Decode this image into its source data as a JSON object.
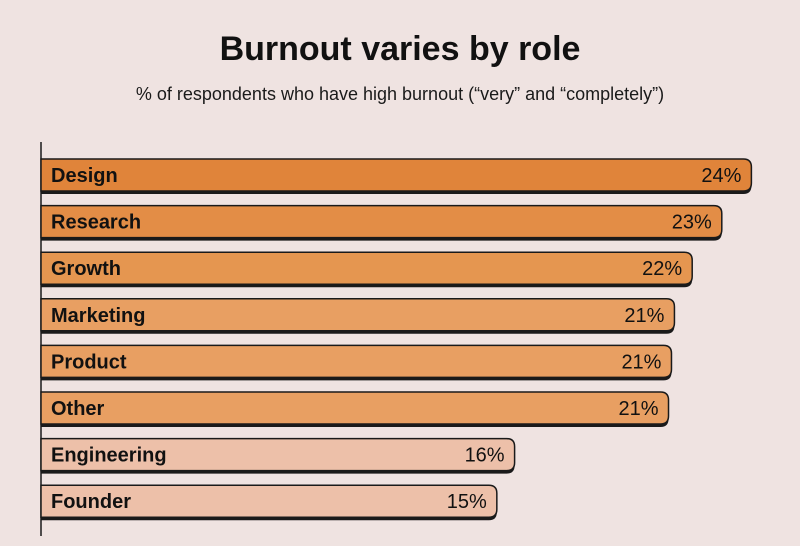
{
  "chart_data": {
    "type": "bar",
    "orientation": "horizontal",
    "title": "Burnout varies by role",
    "subtitle": "% of respondents who have high burnout (“very” and “completely”)",
    "categories": [
      "Design",
      "Research",
      "Growth",
      "Marketing",
      "Product",
      "Other",
      "Engineering",
      "Founder"
    ],
    "values": [
      24,
      23,
      22,
      21,
      21,
      21,
      16,
      15
    ],
    "value_labels": [
      "24%",
      "23%",
      "22%",
      "21%",
      "21%",
      "21%",
      "16%",
      "15%"
    ],
    "bar_widths_data": [
      24.0,
      23.0,
      22.0,
      21.4,
      21.3,
      21.2,
      16.0,
      15.4
    ],
    "xlim": [
      0,
      25.5
    ],
    "bar_colors": [
      "#e0843a",
      "#e38d46",
      "#e59650",
      "#e89f62",
      "#e89f62",
      "#e89f62",
      "#edc0a9",
      "#edc0a9"
    ],
    "outline_color": "#1a1a1a",
    "grid": false,
    "legend": "none"
  }
}
